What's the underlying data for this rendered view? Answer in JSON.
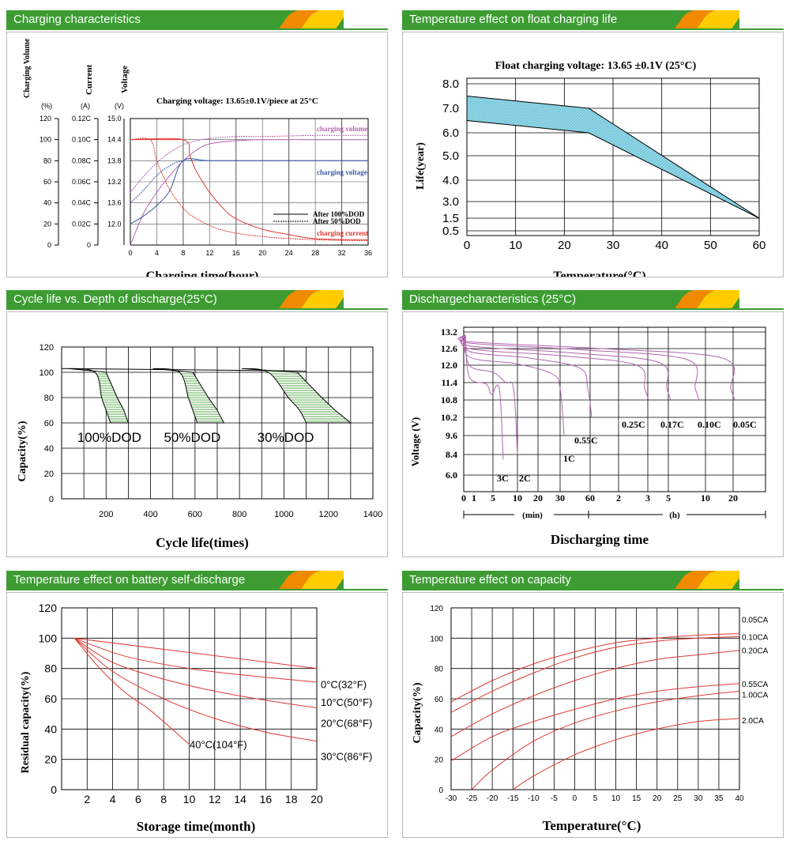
{
  "panels": {
    "p1": {
      "title": "Charging characteristics",
      "axis_heads": [
        "Charging Volume",
        "Current",
        "Voltage"
      ],
      "axis_units": [
        "(%)",
        "(A)",
        "(V)"
      ],
      "note": "Charging voltage:  13.65±0.1V/piece at 25°C",
      "legend": [
        "After 100%DOD",
        "After 50%DOD"
      ],
      "curve_labels": [
        "charging volume",
        "charging voltage",
        "charging current"
      ],
      "xlabel": "Charging time(hour)"
    },
    "p2": {
      "title": "Temperature effect on float charging life",
      "note": "Float charging voltage:  13.65 ±0.1V (25°C)",
      "ylabel": "Life(year)",
      "xlabel": "Temperature(°C)"
    },
    "p3": {
      "title": "Cycle life vs. Depth of discharge(25°C)",
      "ylabel": "Capacity(%)",
      "xlabel": "Cycle life(times)"
    },
    "p4": {
      "title": "Dischargecharacteristics (25°C)",
      "ylabel": "Voltage (V)",
      "xlabel": "Discharging time",
      "unit_min": "(min)",
      "unit_h": "(h)"
    },
    "p5": {
      "title": "Temperature effect on battery self-discharge",
      "ylabel": "Residual capacity(%)",
      "xlabel": "Storage time(month)"
    },
    "p6": {
      "title": "Temperature effect on capacity",
      "ylabel": "Capacity(%)",
      "xlabel": "Temperature(°C)"
    }
  },
  "chart_data": [
    {
      "type": "line",
      "title": "Charging characteristics",
      "xlabel": "Charging time(hour)",
      "x_ticks": [
        0,
        4,
        8,
        12,
        16,
        20,
        24,
        28,
        32,
        36
      ],
      "xlim": [
        0,
        36
      ],
      "y_axes": [
        {
          "name": "Charging Volume (%)",
          "ticks": [
            0,
            20,
            40,
            60,
            80,
            100,
            120
          ]
        },
        {
          "name": "Current (A)",
          "ticks": [
            "0",
            "0.02C",
            "0.04C",
            "0.06C",
            "0.08C",
            "0.10C",
            "0.12C"
          ]
        },
        {
          "name": "Voltage (V)",
          "ticks": [
            12.0,
            13.2,
            13.6,
            13.8,
            14.4,
            15.0
          ]
        }
      ],
      "series": [
        {
          "name": "charging volume",
          "variant": "After 100%DOD",
          "x": [
            0,
            2,
            4,
            6,
            8,
            10,
            12,
            16,
            20,
            28,
            36
          ],
          "y": [
            0,
            30,
            50,
            66,
            80,
            90,
            96,
            99,
            100,
            100,
            100
          ]
        },
        {
          "name": "charging volume",
          "variant": "After 50%DOD",
          "x": [
            0,
            2,
            4,
            6,
            8,
            10,
            12,
            16,
            20,
            28,
            36
          ],
          "y": [
            50,
            65,
            78,
            88,
            95,
            99,
            101,
            103,
            103,
            104,
            104
          ]
        },
        {
          "name": "charging voltage",
          "variant": "After 100%DOD",
          "x": [
            0,
            2,
            4,
            6,
            8,
            12,
            20,
            36
          ],
          "y": [
            12.0,
            12.3,
            12.7,
            13.2,
            13.8,
            13.8,
            13.8,
            13.8
          ]
        },
        {
          "name": "charging voltage",
          "variant": "After 50%DOD",
          "x": [
            0,
            2,
            4,
            6,
            8,
            12,
            20,
            36
          ],
          "y": [
            12.8,
            13.2,
            13.5,
            13.7,
            13.8,
            13.8,
            13.8,
            13.8
          ]
        },
        {
          "name": "charging current",
          "variant": "After 100%DOD",
          "x": [
            0,
            8,
            9,
            10,
            12,
            14,
            16,
            20,
            24,
            28,
            36
          ],
          "y": [
            0.1,
            0.1,
            0.085,
            0.07,
            0.05,
            0.035,
            0.025,
            0.015,
            0.01,
            0.006,
            0.005
          ]
        },
        {
          "name": "charging current",
          "variant": "After 50%DOD",
          "x": [
            0,
            3,
            4,
            5,
            6,
            8,
            10,
            14,
            20,
            28,
            36
          ],
          "y": [
            0.1,
            0.1,
            0.08,
            0.065,
            0.052,
            0.035,
            0.025,
            0.014,
            0.008,
            0.005,
            0.004
          ]
        }
      ]
    },
    {
      "type": "area",
      "title": "Temperature effect on float charging life",
      "xlabel": "Temperature(°C)",
      "ylabel": "Life(year)",
      "x_ticks": [
        0,
        10,
        20,
        30,
        40,
        50,
        60
      ],
      "y_ticks": [
        0.5,
        1.5,
        3.0,
        4.0,
        5.0,
        6.0,
        7.0,
        8.0
      ],
      "series": [
        {
          "name": "upper",
          "x": [
            0,
            25,
            60
          ],
          "y": [
            7.5,
            7.0,
            1.5
          ]
        },
        {
          "name": "lower",
          "x": [
            0,
            25,
            60
          ],
          "y": [
            6.5,
            6.0,
            1.5
          ]
        }
      ]
    },
    {
      "type": "area",
      "title": "Cycle life vs. Depth of discharge(25°C)",
      "xlabel": "Cycle life(times)",
      "ylabel": "Capacity(%)",
      "x_ticks": [
        200,
        400,
        600,
        800,
        1000,
        1200,
        1400
      ],
      "y_ticks": [
        0,
        20,
        40,
        60,
        80,
        100,
        120
      ],
      "series": [
        {
          "name": "100%DOD",
          "x_band": [
            [
              150,
              200
            ],
            [
              180,
              250
            ],
            [
              200,
              280
            ],
            [
              220,
              300
            ]
          ],
          "y": [
            100,
            80,
            70,
            60
          ]
        },
        {
          "name": "50%DOD",
          "x_band": [
            [
              530,
              590
            ],
            [
              570,
              660
            ],
            [
              590,
              700
            ],
            [
              610,
              730
            ]
          ],
          "y": [
            100,
            80,
            70,
            60
          ]
        },
        {
          "name": "30%DOD",
          "x_band": [
            [
              930,
              1060
            ],
            [
              1020,
              1170
            ],
            [
              1070,
              1230
            ],
            [
              1100,
              1300
            ]
          ],
          "y": [
            100,
            80,
            70,
            60
          ]
        }
      ]
    },
    {
      "type": "line",
      "title": "Dischargecharacteristics (25°C)",
      "xlabel": "Discharging time",
      "ylabel": "Voltage (V)",
      "x_ticks": [
        "0",
        "1",
        "5",
        "10",
        "20",
        "30",
        "60",
        "2",
        "3",
        "5",
        "10",
        "20"
      ],
      "y_ticks": [
        6.0,
        8.4,
        9.6,
        10.2,
        10.8,
        11.4,
        12.0,
        12.6,
        13.2
      ],
      "series": [
        {
          "name": "3C",
          "end_v": 7.8
        },
        {
          "name": "2C",
          "end_v": 8.4
        },
        {
          "name": "1C",
          "end_v": 9.6
        },
        {
          "name": "0.55C",
          "end_v": 10.2
        },
        {
          "name": "0.25C",
          "end_v": 10.8
        },
        {
          "name": "0.17C",
          "end_v": 10.8
        },
        {
          "name": "0.10C",
          "end_v": 10.8
        },
        {
          "name": "0.05C",
          "end_v": 10.8
        }
      ]
    },
    {
      "type": "line",
      "title": "Temperature effect on battery self-discharge",
      "xlabel": "Storage time(month)",
      "ylabel": "Residual capacity(%)",
      "x_ticks": [
        2,
        4,
        6,
        8,
        10,
        12,
        14,
        16,
        18,
        20
      ],
      "y_ticks": [
        0,
        20,
        40,
        60,
        80,
        100,
        120
      ],
      "xlim": [
        0,
        20
      ],
      "series": [
        {
          "name": "0°C(32°F)",
          "x": [
            1,
            20
          ],
          "y": [
            100,
            80
          ]
        },
        {
          "name": "10°C(50°F)",
          "x": [
            1,
            5,
            10,
            15,
            20
          ],
          "y": [
            100,
            88,
            80,
            75,
            71
          ]
        },
        {
          "name": "20°C(68°F)",
          "x": [
            1,
            4,
            8,
            12,
            16,
            20
          ],
          "y": [
            100,
            84,
            73,
            65,
            59,
            54
          ]
        },
        {
          "name": "30°C(86°F)",
          "x": [
            1,
            4,
            8,
            12,
            16,
            20
          ],
          "y": [
            100,
            78,
            60,
            47,
            38,
            32
          ]
        },
        {
          "name": "40°C(104°F)",
          "x": [
            1,
            3,
            5,
            7,
            10
          ],
          "y": [
            100,
            80,
            64,
            52,
            30
          ]
        }
      ]
    },
    {
      "type": "line",
      "title": "Temperature effect on capacity",
      "xlabel": "Temperature(°C)",
      "ylabel": "Capacity(%)",
      "x_ticks": [
        -30,
        -25,
        -20,
        -15,
        -10,
        -5,
        0,
        5,
        10,
        15,
        20,
        25,
        30,
        35,
        40
      ],
      "y_ticks": [
        0,
        20,
        40,
        60,
        80,
        100,
        120
      ],
      "series": [
        {
          "name": "0.05CA",
          "x": [
            -30,
            -20,
            -10,
            0,
            10,
            20,
            30,
            40
          ],
          "y": [
            58,
            72,
            83,
            91,
            97,
            100,
            102,
            103
          ]
        },
        {
          "name": "0.10CA",
          "x": [
            -30,
            -20,
            -10,
            0,
            10,
            20,
            30,
            40
          ],
          "y": [
            51,
            65,
            77,
            87,
            94,
            98,
            100,
            101
          ]
        },
        {
          "name": "0.20CA",
          "x": [
            -30,
            -20,
            -10,
            0,
            10,
            20,
            30,
            40
          ],
          "y": [
            35,
            50,
            62,
            72,
            80,
            86,
            89,
            92
          ]
        },
        {
          "name": "0.55CA",
          "x": [
            -30,
            -20,
            -10,
            0,
            10,
            20,
            30,
            40
          ],
          "y": [
            19,
            35,
            45,
            53,
            60,
            65,
            68,
            70
          ]
        },
        {
          "name": "1.00CA",
          "x": [
            -25,
            -20,
            -10,
            0,
            10,
            20,
            30,
            40
          ],
          "y": [
            0,
            13,
            32,
            44,
            52,
            58,
            62,
            65
          ]
        },
        {
          "name": "2.0CA",
          "x": [
            -15,
            -10,
            0,
            10,
            20,
            30,
            40
          ],
          "y": [
            0,
            9,
            23,
            33,
            40,
            45,
            47
          ]
        }
      ]
    }
  ]
}
